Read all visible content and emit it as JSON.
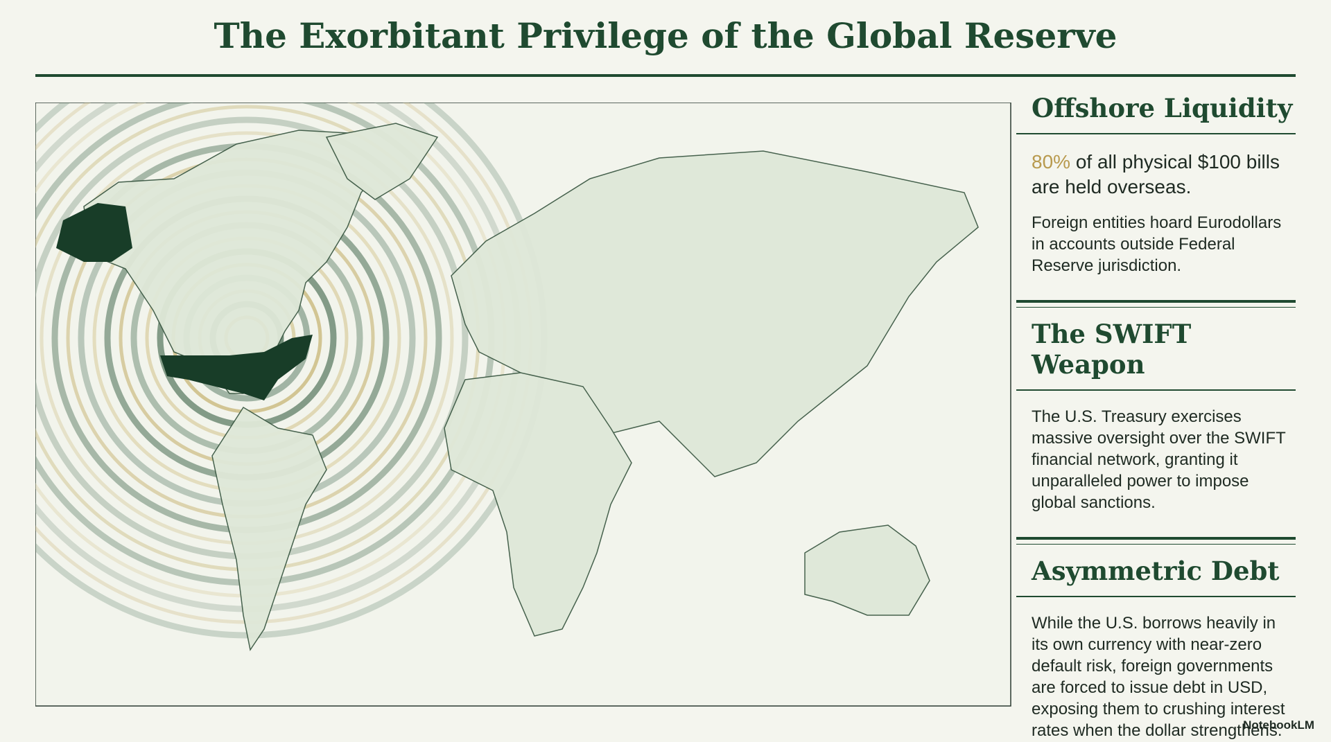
{
  "header": {
    "title": "The Exorbitant Privilege of the Global Reserve"
  },
  "sections": [
    {
      "title": "Offshore Liquidity",
      "highlight": "80%",
      "lead": "of all physical $100 bills are held overseas.",
      "body": "Foreign entities hoard Eurodollars in accounts outside Federal Reserve jurisdiction."
    },
    {
      "title": "The SWIFT Weapon",
      "body": "The U.S. Treasury exercises massive oversight over the SWIFT financial network, granting it unparalleled power to impose global sanctions."
    },
    {
      "title": "Asymmetric Debt",
      "body": "While the U.S. borrows heavily in its own currency with near-zero default risk, foreign governments are forced to issue debt in USD, exposing them to crushing interest rates when the dollar strengthens."
    }
  ],
  "footer": {
    "brand": "NotebookLM"
  }
}
